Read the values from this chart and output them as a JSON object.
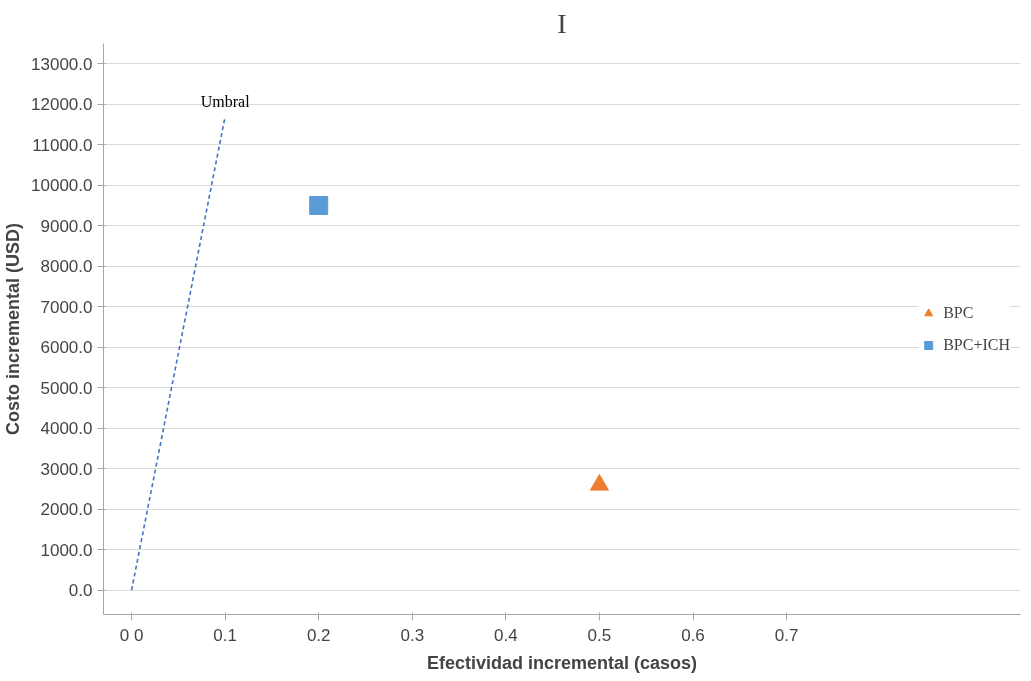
{
  "chart_data": {
    "type": "scatter",
    "title": "I",
    "xlabel": "Efectividad incremental (casos)",
    "ylabel": "Costo incremental (USD)",
    "xlim": [
      -0.03,
      0.95
    ],
    "ylim": [
      -600,
      13500
    ],
    "xticks": [
      {
        "value": 0,
        "label": "0 0"
      },
      0.1,
      0.2,
      0.3,
      0.4,
      0.5,
      0.6,
      0.7
    ],
    "yticks": [
      {
        "value": 0,
        "label": "0.0"
      },
      {
        "value": 1000,
        "label": "1000.0"
      },
      {
        "value": 2000,
        "label": "2000.0"
      },
      {
        "value": 3000,
        "label": "3000.0"
      },
      {
        "value": 4000,
        "label": "4000.0"
      },
      {
        "value": 5000,
        "label": "5000.0"
      },
      {
        "value": 6000,
        "label": "6000.0"
      },
      {
        "value": 7000,
        "label": "7000.0"
      },
      {
        "value": 8000,
        "label": "8000.0"
      },
      {
        "value": 9000,
        "label": "9000.0"
      },
      {
        "value": 10000,
        "label": "10000.0"
      },
      {
        "value": 11000,
        "label": "11000.0"
      },
      {
        "value": 12000,
        "label": "12000.0"
      },
      {
        "value": 13000,
        "label": "13000.0"
      }
    ],
    "grid": "y",
    "legend": "right",
    "annotations": [
      {
        "text": "Umbral",
        "x": 0.1,
        "y": 11700
      }
    ],
    "series": [
      {
        "name": "BPC",
        "marker": "triangle",
        "color": "#ed7d31",
        "x": [
          0.5
        ],
        "values": [
          2600
        ]
      },
      {
        "name": "BPC+ICH",
        "marker": "square",
        "color": "#5b9bd5",
        "x": [
          0.2
        ],
        "values": [
          9500
        ]
      },
      {
        "type": "line",
        "line_style": "dashed",
        "color": "#4472c4",
        "x": [
          0,
          0.1
        ],
        "values": [
          0,
          11700
        ]
      }
    ]
  }
}
